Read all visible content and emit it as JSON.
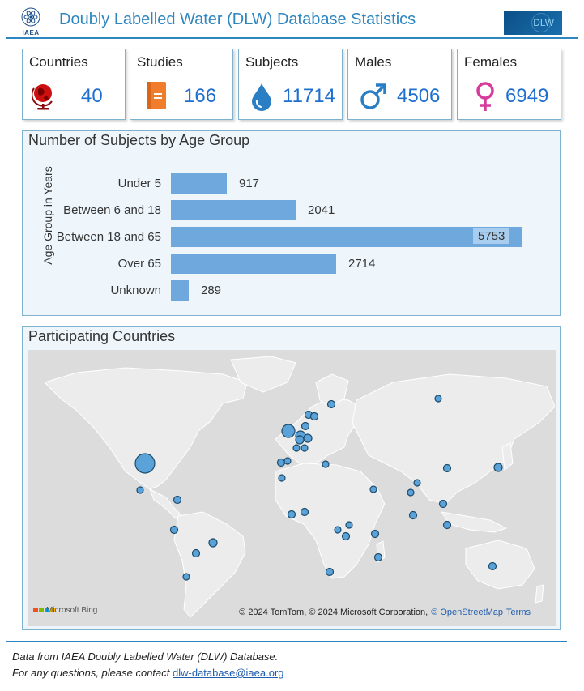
{
  "header": {
    "logo_text": "IAEA",
    "title": "Doubly Labelled Water (DLW) Database Statistics",
    "brand_logo_text": "DLW",
    "accent_color": "#2e86c1"
  },
  "kpis": [
    {
      "label": "Countries",
      "value": "40",
      "icon": "globe-icon",
      "color": "#cc1010"
    },
    {
      "label": "Studies",
      "value": "166",
      "icon": "book-icon",
      "color": "#f07d2c"
    },
    {
      "label": "Subjects",
      "value": "11714",
      "icon": "water-drop-icon",
      "color": "#2a7fc4"
    },
    {
      "label": "Males",
      "value": "4506",
      "icon": "male-symbol-icon",
      "color": "#2a7fc4"
    },
    {
      "label": "Females",
      "value": "6949",
      "icon": "female-symbol-icon",
      "color": "#d63b9c"
    }
  ],
  "age_panel": {
    "title": "Number of Subjects by Age Group"
  },
  "chart_data": {
    "type": "bar",
    "orientation": "horizontal",
    "title": "Number of Subjects by Age Group",
    "ylabel": "Age Group in Years",
    "xlabel": "",
    "categories": [
      "Under 5",
      "Between 6 and 18",
      "Between 18 and 65",
      "Over 65",
      "Unknown"
    ],
    "values": [
      917,
      2041,
      5753,
      2714,
      289
    ],
    "value_labels": [
      "917",
      "2041",
      "5753",
      "2714",
      "289"
    ],
    "xlim": [
      0,
      5753
    ],
    "grid": false,
    "legend": "none",
    "bar_color": "#6fa8dc"
  },
  "map_panel": {
    "title": "Participating Countries",
    "provider": "Microsoft Bing",
    "attribution": "© 2024 TomTom, © 2024 Microsoft Corporation,",
    "osm_link": "© OpenStreetMap",
    "terms_link": "Terms"
  },
  "footer": {
    "line1": "Data from IAEA Doubly Labelled Water (DLW) Database.",
    "line2_prefix": "For any questions, please contact",
    "email": "dlw-database@iaea.org"
  }
}
